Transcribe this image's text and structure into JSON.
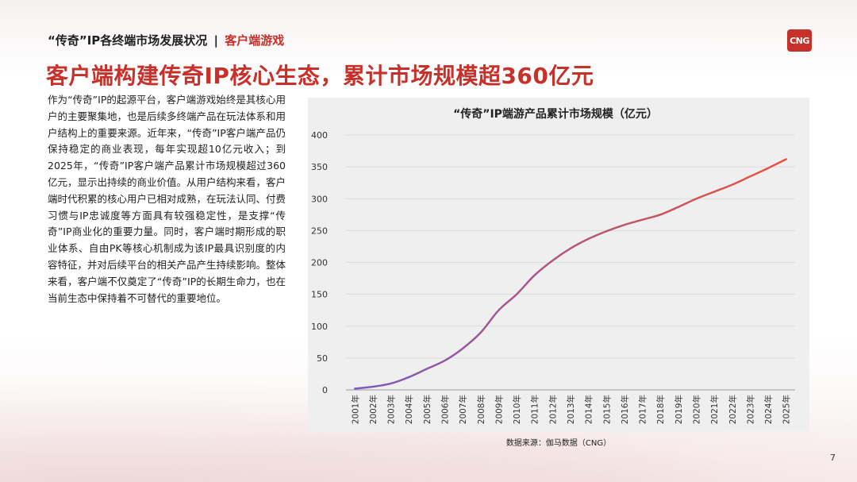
{
  "header": {
    "section_title": "“传奇”IP各终端市场发展状况",
    "separator": "|",
    "subsection": "客户端游戏"
  },
  "logo": {
    "text": "CNG",
    "color": "#c8302a"
  },
  "headline": "客户端构建传奇IP核心生态，累计市场规模超360亿元",
  "body_text": "作为“传奇”IP的起源平台，客户端游戏始终是其核心用户的主要聚集地，也是后续多终端产品在玩法体系和用户结构上的重要来源。近年来，“传奇”IP客户端产品仍保持稳定的商业表现，每年实现超10亿元收入；到2025年，“传奇”IP客户端产品累计市场规模超过360亿元，显示出持续的商业价值。从用户结构来看，客户端时代积累的核心用户已相对成熟，在玩法认同、付费习惯与IP忠诚度等方面具有较强稳定性，是支撑“传奇”IP商业化的重要力量。同时，客户端时期形成的职业体系、自由PK等核心机制成为该IP最具识别度的内容特征，并对后续平台的相关产品产生持续影响。整体来看，客户端不仅奠定了“传奇”IP的长期生命力，也在当前生态中保持着不可替代的重要地位。",
  "chart_data": {
    "type": "line",
    "title": "“传奇”IP端游产品累计市场规模（亿元）",
    "xlabel": "",
    "ylabel": "",
    "ylim": [
      0,
      400
    ],
    "yticks": [
      0,
      50,
      100,
      150,
      200,
      250,
      300,
      350,
      400
    ],
    "grid": true,
    "categories": [
      "2001年",
      "2002年",
      "2003年",
      "2004年",
      "2005年",
      "2006年",
      "2007年",
      "2008年",
      "2009年",
      "2010年",
      "2011年",
      "2012年",
      "2013年",
      "2014年",
      "2015年",
      "2016年",
      "2017年",
      "2018年",
      "2019年",
      "2020年",
      "2021年",
      "2022年",
      "2023年",
      "2024年",
      "2025年"
    ],
    "series": [
      {
        "values": [
          2,
          5,
          10,
          20,
          33,
          46,
          65,
          90,
          125,
          150,
          180,
          203,
          222,
          237,
          249,
          259,
          267,
          275,
          287,
          300,
          311,
          322,
          335,
          348,
          362
        ],
        "color_start": "#7b5bbf",
        "color_end": "#e8533a"
      }
    ]
  },
  "source_note": "数据来源：伽马数据（CNG）",
  "page_number": "7"
}
